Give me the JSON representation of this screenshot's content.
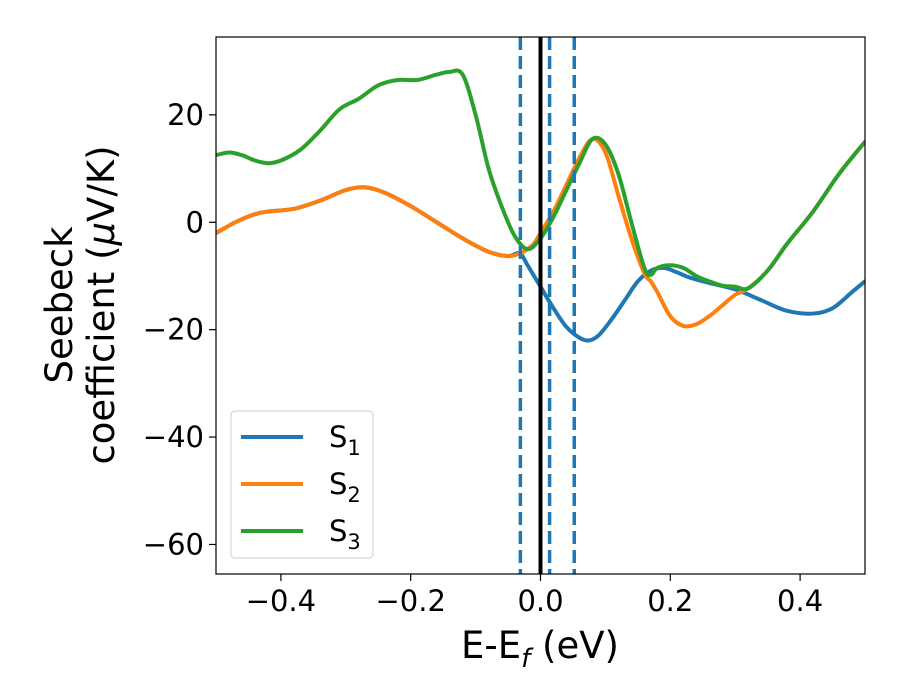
{
  "chart_data": {
    "type": "line",
    "title": "",
    "xlabel": "E-E_f (eV)",
    "ylabel_line1": "Seebeck",
    "ylabel_line2": "coefficient  (μV/K)",
    "xlim": [
      -0.5,
      0.5
    ],
    "ylim": [
      -65.5,
      34.5
    ],
    "xticks": [
      -0.4,
      -0.2,
      0.0,
      0.2,
      0.4
    ],
    "xtick_labels": [
      "−0.4",
      "−0.2",
      "0.0",
      "0.2",
      "0.4"
    ],
    "yticks": [
      20,
      0,
      -20,
      -40,
      -60
    ],
    "ytick_labels": [
      "20",
      "0",
      "−20",
      "−40",
      "−60"
    ],
    "grid": false,
    "legend_position": "lower-left",
    "vertical_lines": [
      {
        "x": -0.031,
        "style": "dashed",
        "color": "#1f77b4"
      },
      {
        "x": 0.014,
        "style": "dashed",
        "color": "#1f77b4"
      },
      {
        "x": 0.052,
        "style": "dashed",
        "color": "#1f77b4"
      },
      {
        "x": 0.0,
        "style": "solid",
        "color": "#000000"
      }
    ],
    "series": [
      {
        "name": "S1",
        "label_base": "S",
        "label_sub": "1",
        "color": "#1f77b4",
        "x": [
          -0.5,
          -0.47,
          -0.44,
          -0.42,
          -0.38,
          -0.34,
          -0.3,
          -0.27,
          -0.24,
          -0.2,
          -0.16,
          -0.12,
          -0.08,
          -0.05,
          -0.032,
          -0.02,
          -0.01,
          0.0,
          0.02,
          0.04,
          0.06,
          0.075,
          0.09,
          0.11,
          0.13,
          0.15,
          0.17,
          0.19,
          0.21,
          0.23,
          0.26,
          0.3,
          0.34,
          0.38,
          0.42,
          0.45,
          0.48,
          0.5
        ],
        "y": [
          -2,
          0,
          1.5,
          2,
          2.5,
          4,
          6,
          6.5,
          5.5,
          3,
          0,
          -3,
          -5.5,
          -6.3,
          -5.8,
          -8,
          -10,
          -12,
          -16,
          -19.5,
          -21.5,
          -22,
          -21,
          -18,
          -14.5,
          -11,
          -9,
          -8.5,
          -9.3,
          -10.3,
          -11.3,
          -12.5,
          -14.5,
          -16.5,
          -17,
          -16,
          -13,
          -11
        ]
      },
      {
        "name": "S2",
        "label_base": "S",
        "label_sub": "2",
        "color": "#ff7f0e",
        "x": [
          -0.5,
          -0.47,
          -0.44,
          -0.42,
          -0.38,
          -0.34,
          -0.3,
          -0.27,
          -0.24,
          -0.2,
          -0.16,
          -0.12,
          -0.08,
          -0.05,
          -0.032,
          -0.02,
          -0.01,
          0.0,
          0.02,
          0.04,
          0.06,
          0.08,
          0.1,
          0.12,
          0.14,
          0.16,
          0.17,
          0.18,
          0.2,
          0.22,
          0.24,
          0.26,
          0.28,
          0.3,
          0.32,
          0.35,
          0.38,
          0.42,
          0.46,
          0.5
        ],
        "y": [
          -2,
          0,
          1.5,
          2,
          2.5,
          4,
          6,
          6.5,
          5.5,
          3,
          0,
          -3,
          -5.5,
          -6.3,
          -5.8,
          -5,
          -4,
          -2,
          2,
          7,
          12,
          15.5,
          13,
          5,
          -3,
          -9.5,
          -11,
          -13,
          -17.5,
          -19.3,
          -19,
          -17.5,
          -15.5,
          -13.5,
          -12.3,
          -9,
          -4,
          2,
          9,
          15
        ]
      },
      {
        "name": "S3",
        "label_base": "S",
        "label_sub": "3",
        "color": "#2ca02c",
        "x": [
          -0.5,
          -0.48,
          -0.46,
          -0.44,
          -0.42,
          -0.4,
          -0.37,
          -0.34,
          -0.31,
          -0.28,
          -0.25,
          -0.22,
          -0.19,
          -0.16,
          -0.14,
          -0.12,
          -0.1,
          -0.08,
          -0.06,
          -0.04,
          -0.02,
          0.0,
          0.02,
          0.04,
          0.06,
          0.08,
          0.1,
          0.12,
          0.14,
          0.16,
          0.17,
          0.18,
          0.2,
          0.22,
          0.24,
          0.26,
          0.28,
          0.3,
          0.32,
          0.35,
          0.38,
          0.42,
          0.46,
          0.5
        ],
        "y": [
          12.5,
          13,
          12.5,
          11.5,
          11,
          11.5,
          13.5,
          17,
          21,
          23,
          25.5,
          26.5,
          26.5,
          27.5,
          28,
          27.5,
          20,
          10,
          3,
          -2.5,
          -5,
          -3,
          1,
          6,
          11,
          15.5,
          14.5,
          9,
          0,
          -8.5,
          -9.8,
          -8.5,
          -8,
          -8.5,
          -10,
          -11,
          -11.8,
          -12,
          -12.3,
          -9,
          -4,
          2,
          9,
          15
        ]
      }
    ]
  }
}
